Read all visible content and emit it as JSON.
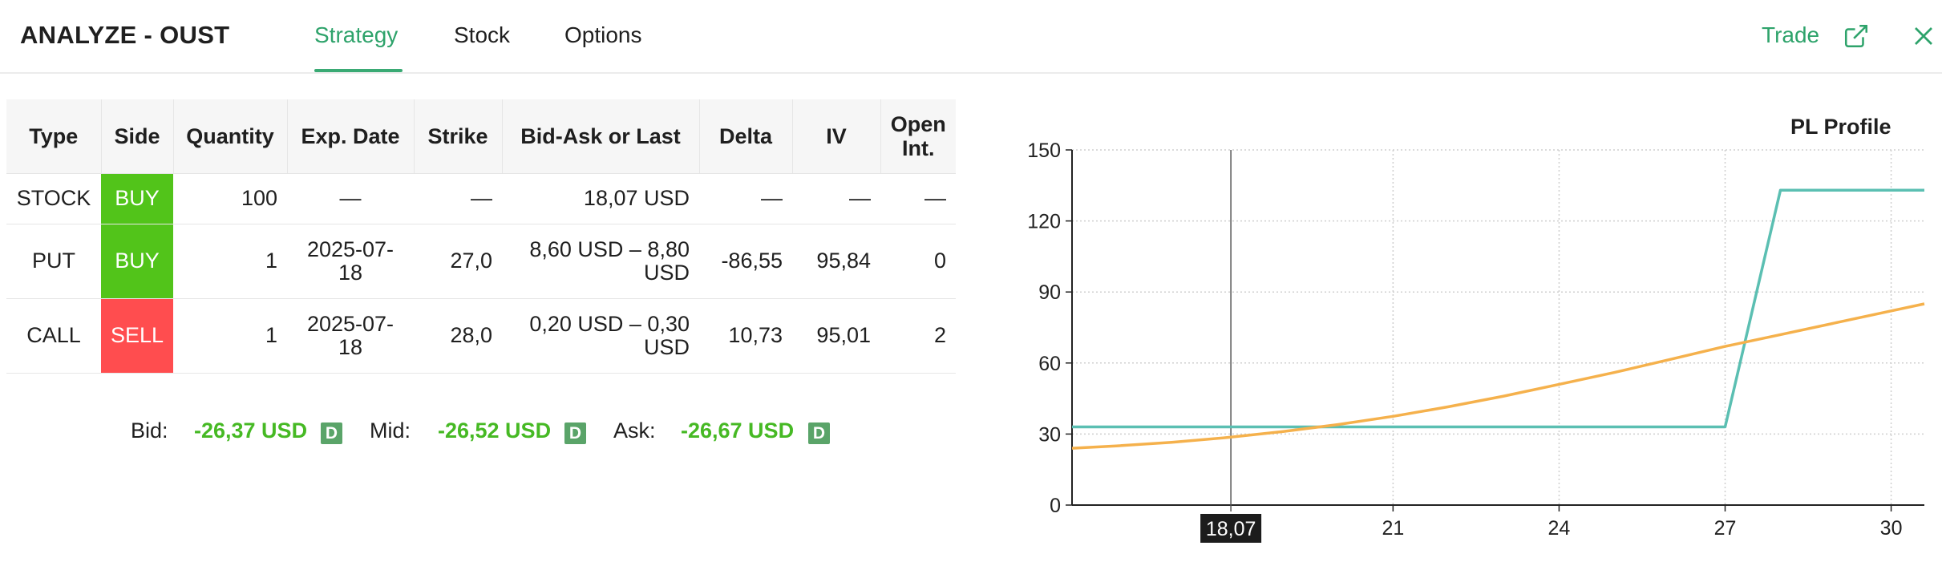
{
  "header": {
    "title": "ANALYZE - OUST",
    "tabs": [
      "Strategy",
      "Stock",
      "Options"
    ],
    "active_tab": "Strategy",
    "trade_label": "Trade",
    "accent_color": "#2ea36b"
  },
  "table": {
    "columns": [
      "Type",
      "Side",
      "Quantity",
      "Exp. Date",
      "Strike",
      "Bid-Ask or Last",
      "Delta",
      "IV",
      "Open Int."
    ],
    "rows": [
      {
        "type": "STOCK",
        "side": "BUY",
        "quantity": "100",
        "exp_date": "—",
        "strike": "—",
        "bid_ask": "18,07 USD",
        "delta": "—",
        "iv": "—",
        "open_int": "—"
      },
      {
        "type": "PUT",
        "side": "BUY",
        "quantity": "1",
        "exp_date": "2025-07-18",
        "strike": "27,0",
        "bid_ask": "8,60 USD – 8,80 USD",
        "delta": "-86,55",
        "iv": "95,84",
        "open_int": "0"
      },
      {
        "type": "CALL",
        "side": "SELL",
        "quantity": "1",
        "exp_date": "2025-07-18",
        "strike": "28,0",
        "bid_ask": "0,20 USD – 0,30 USD",
        "delta": "10,73",
        "iv": "95,01",
        "open_int": "2"
      }
    ],
    "buy_color": "#52c41a",
    "sell_color": "#ff4d4f"
  },
  "summary": {
    "bid_label": "Bid:",
    "bid_value": "-26,37 USD",
    "mid_label": "Mid:",
    "mid_value": "-26,52 USD",
    "ask_label": "Ask:",
    "ask_value": "-26,67 USD",
    "badge": "D",
    "value_color": "#46b924"
  },
  "chart_data": {
    "type": "line",
    "title": "PL Profile",
    "xlim": [
      15.2,
      30.6
    ],
    "ylim": [
      0,
      150
    ],
    "yticks": [
      0,
      30,
      60,
      90,
      120,
      150
    ],
    "xticks": [
      21,
      24,
      27,
      30
    ],
    "marker": {
      "x": 18.07,
      "label": "18,07"
    },
    "grid": true,
    "series": [
      {
        "color": "#5bbfb2",
        "x": [
          15.2,
          27.0,
          28.0,
          30.6
        ],
        "y": [
          33,
          33,
          133,
          133
        ]
      },
      {
        "color": "#f5b14c",
        "x": [
          15.2,
          16,
          17,
          18,
          19,
          20,
          21,
          22,
          23,
          24,
          25,
          26,
          27,
          28,
          29,
          30,
          30.6
        ],
        "y": [
          24,
          25,
          26.5,
          28.5,
          31,
          34,
          37.5,
          41.5,
          46,
          51,
          56,
          61.5,
          67,
          72,
          77,
          82,
          85
        ]
      }
    ]
  }
}
